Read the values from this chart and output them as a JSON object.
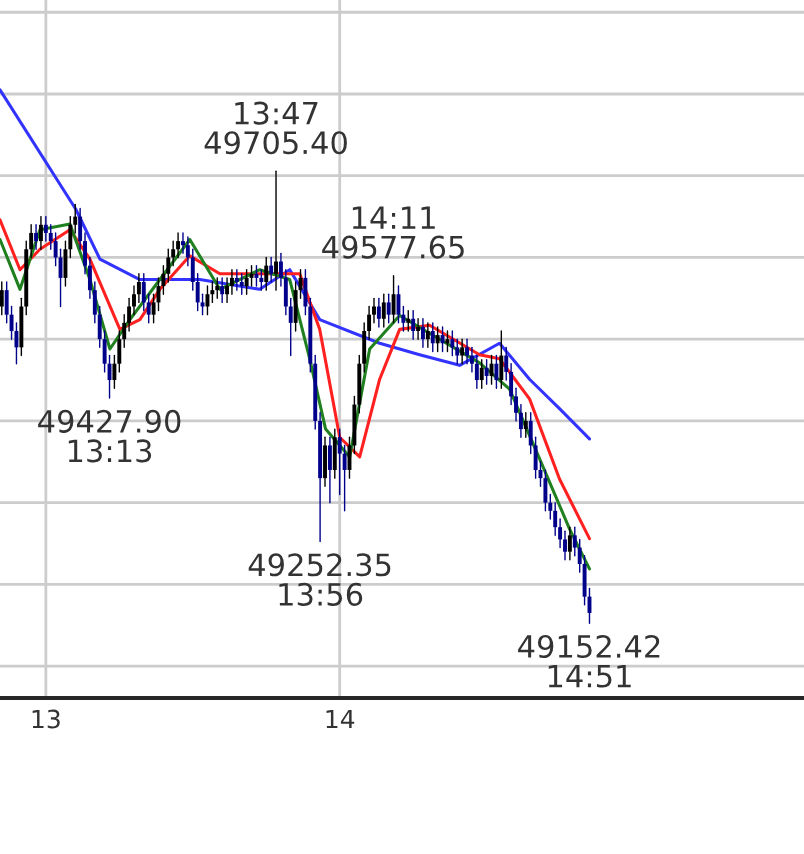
{
  "chart_data": {
    "type": "candlestick",
    "x": [
      12.85,
      12.8667,
      12.8833,
      12.9,
      12.9167,
      12.9333,
      12.95,
      12.9667,
      12.9833,
      13.0,
      13.0167,
      13.0333,
      13.05,
      13.0667,
      13.0833,
      13.1,
      13.1167,
      13.1333,
      13.15,
      13.1667,
      13.1833,
      13.2,
      13.2167,
      13.2333,
      13.25,
      13.2667,
      13.2833,
      13.3,
      13.3167,
      13.3333,
      13.35,
      13.3667,
      13.3833,
      13.4,
      13.4167,
      13.4333,
      13.45,
      13.4667,
      13.4833,
      13.5,
      13.5167,
      13.5333,
      13.55,
      13.5667,
      13.5833,
      13.6,
      13.6167,
      13.6333,
      13.65,
      13.6667,
      13.6833,
      13.7,
      13.7167,
      13.7333,
      13.75,
      13.7667,
      13.7833,
      13.8,
      13.8167,
      13.8333,
      13.85,
      13.8667,
      13.8833,
      13.9,
      13.9167,
      13.9333,
      13.95,
      13.9667,
      13.9833,
      14.0,
      14.0167,
      14.0333,
      14.05,
      14.0667,
      14.0833,
      14.1,
      14.1167,
      14.1333,
      14.15,
      14.1667,
      14.1833,
      14.2,
      14.2167,
      14.2333,
      14.25,
      14.2667,
      14.2833,
      14.3,
      14.3167,
      14.3333,
      14.35,
      14.3667,
      14.3833,
      14.4,
      14.4167,
      14.4333,
      14.45,
      14.4667,
      14.4833,
      14.5,
      14.5167,
      14.5333,
      14.55,
      14.5667,
      14.5833,
      14.6,
      14.6167,
      14.6333,
      14.65,
      14.6667,
      14.6833,
      14.7,
      14.7167,
      14.7333,
      14.75,
      14.7667,
      14.7833,
      14.8,
      14.8167,
      14.8333,
      14.85
    ],
    "ohlc": [
      [
        49540,
        49570,
        49530,
        49560
      ],
      [
        49560,
        49570,
        49520,
        49530
      ],
      [
        49530,
        49540,
        49500,
        49510
      ],
      [
        49510,
        49520,
        49470,
        49490
      ],
      [
        49490,
        49550,
        49480,
        49540
      ],
      [
        49540,
        49620,
        49530,
        49610
      ],
      [
        49610,
        49640,
        49600,
        49630
      ],
      [
        49630,
        49640,
        49610,
        49620
      ],
      [
        49620,
        49650,
        49610,
        49640
      ],
      [
        49640,
        49650,
        49620,
        49630
      ],
      [
        49630,
        49640,
        49610,
        49620
      ],
      [
        49620,
        49630,
        49590,
        49600
      ],
      [
        49600,
        49610,
        49540,
        49575
      ],
      [
        49575,
        49620,
        49565,
        49610
      ],
      [
        49610,
        49650,
        49600,
        49640
      ],
      [
        49640,
        49665,
        49630,
        49650
      ],
      [
        49650,
        49660,
        49610,
        49620
      ],
      [
        49620,
        49630,
        49580,
        49590
      ],
      [
        49590,
        49600,
        49550,
        49560
      ],
      [
        49560,
        49570,
        49520,
        49530
      ],
      [
        49530,
        49540,
        49490,
        49500
      ],
      [
        49500,
        49510,
        49460,
        49470
      ],
      [
        49470,
        49480,
        49427.9,
        49450
      ],
      [
        49450,
        49480,
        49440,
        49470
      ],
      [
        49470,
        49510,
        49460,
        49500
      ],
      [
        49500,
        49530,
        49490,
        49520
      ],
      [
        49520,
        49550,
        49510,
        49540
      ],
      [
        49540,
        49565,
        49530,
        49555
      ],
      [
        49555,
        49580,
        49545,
        49570
      ],
      [
        49570,
        49580,
        49535,
        49545
      ],
      [
        49545,
        49555,
        49520,
        49530
      ],
      [
        49530,
        49555,
        49520,
        49545
      ],
      [
        49545,
        49575,
        49535,
        49565
      ],
      [
        49565,
        49590,
        49555,
        49580
      ],
      [
        49580,
        49610,
        49570,
        49600
      ],
      [
        49600,
        49620,
        49590,
        49610
      ],
      [
        49610,
        49630,
        49600,
        49620
      ],
      [
        49620,
        49630,
        49605,
        49615
      ],
      [
        49615,
        49625,
        49590,
        49600
      ],
      [
        49600,
        49610,
        49560,
        49570
      ],
      [
        49570,
        49580,
        49535,
        49545
      ],
      [
        49545,
        49555,
        49530,
        49540
      ],
      [
        49540,
        49565,
        49530,
        49555
      ],
      [
        49555,
        49570,
        49545,
        49560
      ],
      [
        49560,
        49575,
        49550,
        49565
      ],
      [
        49565,
        49575,
        49545,
        49555
      ],
      [
        49555,
        49575,
        49545,
        49565
      ],
      [
        49565,
        49585,
        49555,
        49575
      ],
      [
        49575,
        49585,
        49560,
        49570
      ],
      [
        49570,
        49580,
        49555,
        49565
      ],
      [
        49565,
        49585,
        49555,
        49575
      ],
      [
        49575,
        49590,
        49565,
        49580
      ],
      [
        49580,
        49590,
        49565,
        49575
      ],
      [
        49575,
        49585,
        49560,
        49570
      ],
      [
        49570,
        49600,
        49560,
        49590
      ],
      [
        49590,
        49600,
        49570,
        49580
      ],
      [
        49580,
        49705.4,
        49560,
        49595
      ],
      [
        49595,
        49605,
        49565,
        49575
      ],
      [
        49575,
        49585,
        49530,
        49540
      ],
      [
        49540,
        49550,
        49480,
        49520
      ],
      [
        49520,
        49570,
        49510,
        49560
      ],
      [
        49560,
        49585,
        49550,
        49575
      ],
      [
        49575,
        49585,
        49530,
        49540
      ],
      [
        49540,
        49550,
        49460,
        49470
      ],
      [
        49470,
        49480,
        49390,
        49400
      ],
      [
        49400,
        49410,
        49252.35,
        49330
      ],
      [
        49330,
        49380,
        49320,
        49370
      ],
      [
        49370,
        49380,
        49300,
        49340
      ],
      [
        49340,
        49390,
        49330,
        49380
      ],
      [
        49380,
        49390,
        49310,
        49360
      ],
      [
        49360,
        49370,
        49290,
        49340
      ],
      [
        49340,
        49380,
        49330,
        49370
      ],
      [
        49370,
        49430,
        49360,
        49420
      ],
      [
        49420,
        49480,
        49410,
        49470
      ],
      [
        49470,
        49520,
        49460,
        49510
      ],
      [
        49510,
        49540,
        49500,
        49530
      ],
      [
        49530,
        49550,
        49520,
        49540
      ],
      [
        49540,
        49550,
        49515,
        49525
      ],
      [
        49525,
        49555,
        49515,
        49545
      ],
      [
        49545,
        49555,
        49520,
        49530
      ],
      [
        49530,
        49577.65,
        49520,
        49555
      ],
      [
        49555,
        49565,
        49520,
        49530
      ],
      [
        49530,
        49540,
        49510,
        49520
      ],
      [
        49520,
        49535,
        49510,
        49525
      ],
      [
        49525,
        49535,
        49500,
        49510
      ],
      [
        49510,
        49525,
        49500,
        49515
      ],
      [
        49515,
        49525,
        49490,
        49500
      ],
      [
        49500,
        49520,
        49490,
        49510
      ],
      [
        49510,
        49520,
        49485,
        49495
      ],
      [
        49495,
        49515,
        49485,
        49505
      ],
      [
        49505,
        49515,
        49485,
        49495
      ],
      [
        49495,
        49510,
        49485,
        49500
      ],
      [
        49500,
        49510,
        49480,
        49490
      ],
      [
        49490,
        49500,
        49470,
        49480
      ],
      [
        49480,
        49500,
        49470,
        49490
      ],
      [
        49490,
        49500,
        49470,
        49480
      ],
      [
        49480,
        49490,
        49460,
        49470
      ],
      [
        49470,
        49480,
        49440,
        49450
      ],
      [
        49450,
        49475,
        49440,
        49465
      ],
      [
        49465,
        49475,
        49445,
        49455
      ],
      [
        49455,
        49480,
        49445,
        49470
      ],
      [
        49470,
        49480,
        49440,
        49450
      ],
      [
        49450,
        49510,
        49440,
        49480
      ],
      [
        49480,
        49490,
        49450,
        49460
      ],
      [
        49460,
        49470,
        49420,
        49430
      ],
      [
        49430,
        49440,
        49400,
        49410
      ],
      [
        49410,
        49420,
        49380,
        49390
      ],
      [
        49390,
        49410,
        49380,
        49400
      ],
      [
        49400,
        49410,
        49360,
        49370
      ],
      [
        49370,
        49380,
        49330,
        49340
      ],
      [
        49340,
        49350,
        49320,
        49330
      ],
      [
        49330,
        49340,
        49290,
        49300
      ],
      [
        49300,
        49310,
        49280,
        49290
      ],
      [
        49290,
        49300,
        49260,
        49270
      ],
      [
        49270,
        49280,
        49245,
        49255
      ],
      [
        49255,
        49265,
        49230,
        49240
      ],
      [
        49240,
        49270,
        49230,
        49260
      ],
      [
        49260,
        49270,
        49235,
        49245
      ],
      [
        49245,
        49255,
        49215,
        49225
      ],
      [
        49225,
        49235,
        49175,
        49185
      ],
      [
        49185,
        49195,
        49152.42,
        49165
      ]
    ],
    "colors": [
      "#000000",
      "#00008b",
      "#00008b",
      "#00008b",
      "#000000",
      "#000000",
      "#000000",
      "#00008b",
      "#000000",
      "#00008b",
      "#00008b",
      "#00008b",
      "#00008b",
      "#000000",
      "#000000",
      "#000000",
      "#00008b",
      "#00008b",
      "#00008b",
      "#00008b",
      "#00008b",
      "#00008b",
      "#00008b",
      "#000000",
      "#000000",
      "#000000",
      "#000000",
      "#000000",
      "#000000",
      "#00008b",
      "#00008b",
      "#000000",
      "#000000",
      "#000000",
      "#000000",
      "#000000",
      "#000000",
      "#00008b",
      "#00008b",
      "#00008b",
      "#00008b",
      "#00008b",
      "#000000",
      "#000000",
      "#000000",
      "#00008b",
      "#000000",
      "#000000",
      "#00008b",
      "#00008b",
      "#000000",
      "#000000",
      "#00008b",
      "#00008b",
      "#000000",
      "#00008b",
      "#000000",
      "#00008b",
      "#00008b",
      "#00008b",
      "#000000",
      "#000000",
      "#00008b",
      "#00008b",
      "#00008b",
      "#00008b",
      "#000000",
      "#00008b",
      "#000000",
      "#00008b",
      "#00008b",
      "#000000",
      "#000000",
      "#000000",
      "#000000",
      "#000000",
      "#000000",
      "#00008b",
      "#000000",
      "#00008b",
      "#000000",
      "#00008b",
      "#00008b",
      "#000000",
      "#00008b",
      "#000000",
      "#00008b",
      "#000000",
      "#00008b",
      "#000000",
      "#00008b",
      "#000000",
      "#00008b",
      "#00008b",
      "#000000",
      "#00008b",
      "#00008b",
      "#00008b",
      "#000000",
      "#00008b",
      "#000000",
      "#00008b",
      "#000000",
      "#00008b",
      "#00008b",
      "#00008b",
      "#00008b",
      "#000000",
      "#00008b",
      "#00008b",
      "#00008b",
      "#00008b",
      "#00008b",
      "#00008b",
      "#00008b",
      "#00008b",
      "#000000",
      "#00008b",
      "#00008b",
      "#00008b",
      "#00008b"
    ],
    "series": [
      {
        "type": "line",
        "color": "#3333ff",
        "x": [
          12.844,
          13.102,
          13.184,
          13.32,
          13.524,
          13.728,
          13.83,
          13.932,
          14.136,
          14.272,
          14.408,
          14.544,
          14.646,
          14.748,
          14.85
        ],
        "values": [
          49805,
          49659,
          49598,
          49573,
          49573,
          49561,
          49585,
          49524,
          49495,
          49481,
          49468,
          49495,
          49451,
          49415,
          49378
        ]
      },
      {
        "type": "line",
        "color": "#ff2020",
        "x": [
          12.844,
          12.912,
          12.98,
          13.082,
          13.15,
          13.252,
          13.32,
          13.388,
          13.49,
          13.592,
          13.728,
          13.864,
          13.932,
          14.0,
          14.068,
          14.136,
          14.204,
          14.306,
          14.476,
          14.544,
          14.646,
          14.748,
          14.85
        ],
        "values": [
          49646,
          49585,
          49610,
          49634,
          49598,
          49512,
          49524,
          49561,
          49602,
          49580,
          49580,
          49580,
          49512,
          49380,
          49356,
          49451,
          49512,
          49517,
          49481,
          49476,
          49427,
          49329,
          49256
        ]
      },
      {
        "type": "line",
        "color": "#208020",
        "x": [
          12.844,
          12.912,
          12.98,
          13.082,
          13.15,
          13.218,
          13.286,
          13.388,
          13.49,
          13.592,
          13.728,
          13.83,
          13.898,
          13.952,
          14.034,
          14.102,
          14.204,
          14.34,
          14.476,
          14.578,
          14.68,
          14.782,
          14.85
        ],
        "values": [
          49622,
          49561,
          49634,
          49641,
          49573,
          49488,
          49524,
          49573,
          49622,
          49561,
          49585,
          49573,
          49476,
          49390,
          49356,
          49488,
          49529,
          49500,
          49471,
          49439,
          49354,
          49268,
          49219
        ]
      }
    ],
    "annotations": [
      {
        "text": "13:47\n49705.40",
        "x": 13.7833,
        "y": 49705.4
      },
      {
        "text": "49427.90\n13:13",
        "x": 13.2167,
        "y": 49427.9
      },
      {
        "text": "49252.35\n13:56",
        "x": 13.9333,
        "y": 49252.35
      },
      {
        "text": "14:11\n49577.65",
        "x": 14.1833,
        "y": 49577.65
      },
      {
        "text": "49152.42\n14:51",
        "x": 14.85,
        "y": 49152.42
      }
    ],
    "xlim": [
      12.844,
      15.58
    ],
    "ylim": [
      49061,
      49915
    ],
    "xticks": [
      13,
      14
    ],
    "yticks": [
      {
        "value": 49100,
        "label": null
      },
      {
        "value": 49200,
        "label": null
      },
      {
        "value": 49300,
        "label": null
      },
      {
        "value": 49400,
        "label": null
      },
      {
        "value": 49500,
        "label": null
      },
      {
        "value": 49600,
        "label": null
      },
      {
        "value": 49700,
        "label": null
      },
      {
        "value": 49800,
        "label": null
      },
      {
        "value": 49900,
        "label": null
      }
    ],
    "tick_labels": "x",
    "grid": true,
    "legend": false
  }
}
